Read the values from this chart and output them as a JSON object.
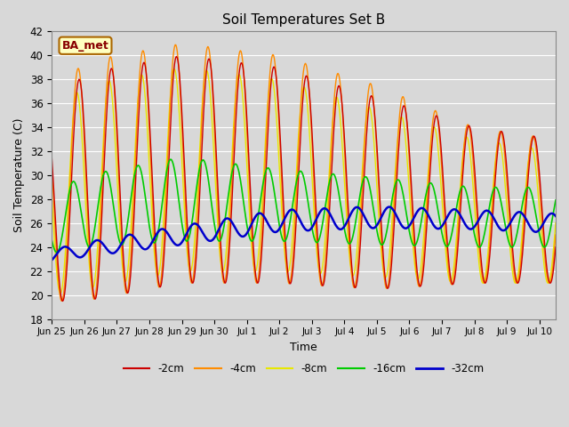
{
  "title": "Soil Temperatures Set B",
  "xlabel": "Time",
  "ylabel": "Soil Temperature (C)",
  "ylim": [
    18,
    42
  ],
  "fig_bg_color": "#d8d8d8",
  "plot_bg_color": "#d8d8d8",
  "legend_label": "BA_met",
  "series_labels": [
    "-2cm",
    "-4cm",
    "-8cm",
    "-16cm",
    "-32cm"
  ],
  "series_colors": [
    "#cc0000",
    "#ff8c00",
    "#e8e800",
    "#00cc00",
    "#0000cc"
  ],
  "series_linewidths": [
    1.0,
    1.0,
    1.0,
    1.2,
    1.8
  ],
  "xtick_labels": [
    "Jun 25",
    "Jun 26",
    "Jun 27",
    "Jun 28",
    "Jun 29",
    "Jun 30",
    "Jul 1",
    "Jul 2",
    "Jul 3",
    "Jul 4",
    "Jul 5",
    "Jul 6",
    "Jul 7",
    "Jul 8",
    "Jul 9",
    "Jul 10"
  ],
  "title_fontsize": 11,
  "grid_color": "#ffffff",
  "annotation_text": "BA_met",
  "annotation_facecolor": "#ffffc0",
  "annotation_edgecolor": "#aa6600",
  "annotation_textcolor": "#880000"
}
